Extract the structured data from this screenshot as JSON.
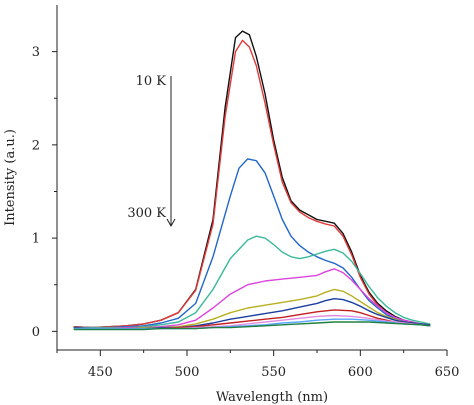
{
  "chart_data": {
    "type": "line",
    "title": "",
    "xlabel": "Wavelength (nm)",
    "ylabel": "Intensity (a.u.)",
    "xlim": [
      425,
      650
    ],
    "ylim": [
      -0.2,
      3.5
    ],
    "xticks": [
      450,
      500,
      550,
      600,
      650
    ],
    "yticks": [
      0,
      1,
      2,
      3
    ],
    "xtick_labels": [
      "450",
      "500",
      "550",
      "600",
      "650"
    ],
    "ytick_labels": [
      "0",
      "1",
      "2",
      "3"
    ],
    "grid": false,
    "legend": "none",
    "annotations": {
      "top_label": "10 K",
      "bottom_label": "300 K",
      "arrow": "downward from 10 K to 300 K"
    },
    "series": [
      {
        "color": "#111111",
        "x": [
          435,
          445,
          455,
          465,
          475,
          485,
          495,
          505,
          515,
          522,
          528,
          532,
          536,
          540,
          545,
          550,
          555,
          560,
          565,
          570,
          575,
          580,
          585,
          590,
          595,
          600,
          605,
          610,
          615,
          620,
          625,
          630,
          635,
          640
        ],
        "y": [
          0.05,
          0.04,
          0.05,
          0.06,
          0.08,
          0.12,
          0.2,
          0.45,
          1.2,
          2.4,
          3.15,
          3.22,
          3.18,
          2.95,
          2.55,
          2.05,
          1.65,
          1.4,
          1.3,
          1.25,
          1.2,
          1.18,
          1.16,
          1.05,
          0.85,
          0.6,
          0.42,
          0.3,
          0.22,
          0.16,
          0.12,
          0.1,
          0.08,
          0.07
        ]
      },
      {
        "color": "#e03a3a",
        "x": [
          435,
          445,
          455,
          465,
          475,
          485,
          495,
          505,
          515,
          522,
          528,
          532,
          536,
          540,
          545,
          550,
          555,
          560,
          565,
          570,
          575,
          580,
          585,
          590,
          595,
          600,
          605,
          610,
          615,
          620,
          625,
          630,
          635,
          640
        ],
        "y": [
          0.05,
          0.04,
          0.05,
          0.06,
          0.08,
          0.12,
          0.2,
          0.44,
          1.15,
          2.3,
          3.0,
          3.12,
          3.05,
          2.85,
          2.45,
          2.0,
          1.6,
          1.38,
          1.28,
          1.22,
          1.18,
          1.15,
          1.13,
          1.02,
          0.82,
          0.58,
          0.4,
          0.28,
          0.2,
          0.15,
          0.11,
          0.09,
          0.08,
          0.07
        ]
      },
      {
        "color": "#2266cc",
        "x": [
          435,
          445,
          455,
          465,
          475,
          485,
          495,
          505,
          515,
          525,
          530,
          535,
          540,
          545,
          550,
          555,
          560,
          565,
          570,
          575,
          580,
          585,
          590,
          595,
          600,
          605,
          610,
          615,
          620,
          625,
          630,
          635,
          640
        ],
        "y": [
          0.04,
          0.04,
          0.04,
          0.05,
          0.06,
          0.09,
          0.14,
          0.3,
          0.8,
          1.45,
          1.75,
          1.85,
          1.83,
          1.7,
          1.45,
          1.2,
          1.02,
          0.92,
          0.85,
          0.8,
          0.76,
          0.73,
          0.68,
          0.58,
          0.45,
          0.33,
          0.25,
          0.18,
          0.14,
          0.11,
          0.09,
          0.08,
          0.07
        ]
      },
      {
        "color": "#3cb89a",
        "x": [
          435,
          445,
          455,
          465,
          475,
          485,
          495,
          505,
          515,
          525,
          535,
          540,
          545,
          550,
          555,
          560,
          565,
          570,
          575,
          580,
          585,
          590,
          595,
          600,
          605,
          610,
          615,
          620,
          625,
          630,
          635,
          640
        ],
        "y": [
          0.04,
          0.04,
          0.04,
          0.04,
          0.05,
          0.07,
          0.1,
          0.2,
          0.45,
          0.78,
          0.98,
          1.02,
          1.0,
          0.93,
          0.85,
          0.8,
          0.78,
          0.8,
          0.83,
          0.86,
          0.88,
          0.84,
          0.75,
          0.62,
          0.48,
          0.36,
          0.27,
          0.2,
          0.15,
          0.12,
          0.1,
          0.08
        ]
      },
      {
        "color": "#dd44dd",
        "x": [
          435,
          445,
          455,
          465,
          475,
          485,
          495,
          505,
          515,
          525,
          535,
          545,
          555,
          565,
          575,
          580,
          585,
          590,
          595,
          600,
          605,
          610,
          615,
          620,
          625,
          630,
          635,
          640
        ],
        "y": [
          0.03,
          0.03,
          0.03,
          0.04,
          0.04,
          0.05,
          0.07,
          0.12,
          0.25,
          0.4,
          0.5,
          0.54,
          0.56,
          0.58,
          0.6,
          0.64,
          0.67,
          0.63,
          0.55,
          0.45,
          0.35,
          0.27,
          0.2,
          0.15,
          0.12,
          0.1,
          0.08,
          0.07
        ]
      },
      {
        "color": "#b8b020",
        "x": [
          435,
          445,
          455,
          465,
          475,
          485,
          495,
          505,
          515,
          525,
          535,
          545,
          555,
          565,
          575,
          580,
          585,
          590,
          595,
          600,
          605,
          610,
          615,
          620,
          625,
          630,
          635,
          640
        ],
        "y": [
          0.03,
          0.03,
          0.03,
          0.03,
          0.04,
          0.04,
          0.05,
          0.08,
          0.13,
          0.2,
          0.25,
          0.28,
          0.31,
          0.34,
          0.38,
          0.42,
          0.45,
          0.43,
          0.38,
          0.32,
          0.26,
          0.2,
          0.16,
          0.13,
          0.1,
          0.09,
          0.08,
          0.07
        ]
      },
      {
        "color": "#1a3fa0",
        "x": [
          435,
          445,
          455,
          465,
          475,
          485,
          495,
          505,
          515,
          525,
          535,
          545,
          555,
          565,
          575,
          580,
          585,
          590,
          595,
          600,
          605,
          610,
          615,
          620,
          625,
          630,
          635,
          640
        ],
        "y": [
          0.04,
          0.03,
          0.03,
          0.03,
          0.03,
          0.04,
          0.04,
          0.06,
          0.09,
          0.13,
          0.16,
          0.19,
          0.22,
          0.26,
          0.3,
          0.33,
          0.35,
          0.34,
          0.31,
          0.27,
          0.22,
          0.18,
          0.15,
          0.12,
          0.1,
          0.09,
          0.08,
          0.07
        ]
      },
      {
        "color": "#c22020",
        "x": [
          435,
          445,
          455,
          465,
          475,
          485,
          495,
          505,
          515,
          525,
          535,
          545,
          555,
          565,
          575,
          585,
          595,
          600,
          605,
          610,
          615,
          620,
          625,
          630,
          635,
          640
        ],
        "y": [
          0.03,
          0.03,
          0.03,
          0.03,
          0.03,
          0.03,
          0.04,
          0.05,
          0.07,
          0.09,
          0.11,
          0.13,
          0.15,
          0.18,
          0.21,
          0.23,
          0.22,
          0.2,
          0.17,
          0.14,
          0.12,
          0.1,
          0.09,
          0.08,
          0.07,
          0.06
        ]
      },
      {
        "color": "#e08ee0",
        "x": [
          435,
          445,
          455,
          465,
          475,
          485,
          495,
          505,
          515,
          525,
          535,
          545,
          555,
          565,
          575,
          585,
          595,
          605,
          615,
          625,
          635,
          640
        ],
        "y": [
          0.03,
          0.03,
          0.03,
          0.03,
          0.03,
          0.03,
          0.03,
          0.04,
          0.05,
          0.06,
          0.08,
          0.1,
          0.12,
          0.14,
          0.16,
          0.17,
          0.16,
          0.14,
          0.11,
          0.09,
          0.07,
          0.06
        ]
      },
      {
        "color": "#5aa5ff",
        "x": [
          435,
          445,
          455,
          465,
          475,
          485,
          495,
          505,
          515,
          525,
          535,
          545,
          555,
          565,
          575,
          585,
          595,
          605,
          615,
          625,
          635,
          640
        ],
        "y": [
          0.03,
          0.03,
          0.03,
          0.03,
          0.03,
          0.03,
          0.03,
          0.03,
          0.04,
          0.05,
          0.06,
          0.07,
          0.09,
          0.1,
          0.12,
          0.13,
          0.13,
          0.12,
          0.1,
          0.08,
          0.07,
          0.06
        ]
      },
      {
        "color": "#208040",
        "x": [
          435,
          445,
          455,
          465,
          475,
          485,
          495,
          505,
          515,
          525,
          535,
          545,
          555,
          565,
          575,
          585,
          595,
          605,
          615,
          625,
          635,
          640
        ],
        "y": [
          0.02,
          0.02,
          0.02,
          0.02,
          0.02,
          0.03,
          0.03,
          0.03,
          0.04,
          0.04,
          0.05,
          0.06,
          0.07,
          0.08,
          0.09,
          0.1,
          0.1,
          0.1,
          0.09,
          0.08,
          0.07,
          0.06
        ]
      }
    ]
  }
}
